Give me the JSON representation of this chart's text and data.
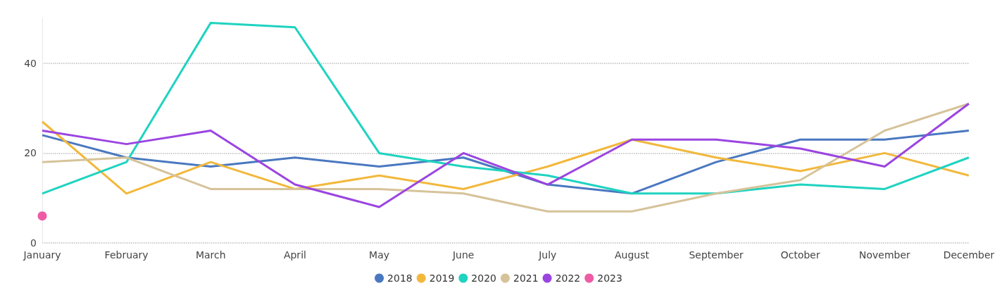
{
  "chart_data": {
    "type": "line",
    "categories": [
      "January",
      "February",
      "March",
      "April",
      "May",
      "June",
      "July",
      "August",
      "September",
      "October",
      "November",
      "December"
    ],
    "series": [
      {
        "name": "2018",
        "color": "#4a78c0",
        "values": [
          24,
          19,
          17,
          19,
          17,
          19,
          13,
          11,
          18,
          23,
          23,
          25
        ]
      },
      {
        "name": "2019",
        "color": "#f2b83c",
        "values": [
          27,
          11,
          18,
          12,
          15,
          12,
          17,
          23,
          19,
          16,
          20,
          15
        ]
      },
      {
        "name": "2020",
        "color": "#1fd3c0",
        "values": [
          11,
          18,
          49,
          48,
          20,
          17,
          15,
          11,
          11,
          13,
          12,
          19
        ]
      },
      {
        "name": "2021",
        "color": "#d6c39a",
        "values": [
          18,
          19,
          12,
          12,
          12,
          11,
          7,
          7,
          11,
          14,
          25,
          31
        ]
      },
      {
        "name": "2022",
        "color": "#9b45e0",
        "values": [
          25,
          22,
          25,
          13,
          8,
          20,
          13,
          23,
          23,
          21,
          17,
          31
        ]
      },
      {
        "name": "2023",
        "color": "#e8338f",
        "type": "scatter",
        "marker": "circle",
        "values": [
          6,
          null,
          null,
          null,
          null,
          null,
          null,
          null,
          null,
          null,
          null,
          null
        ]
      }
    ],
    "ylim": [
      0,
      50
    ],
    "yticks": [
      0,
      20,
      40
    ],
    "grid": "y",
    "legend": "bottom",
    "marker": "none",
    "line_style": "solid"
  }
}
